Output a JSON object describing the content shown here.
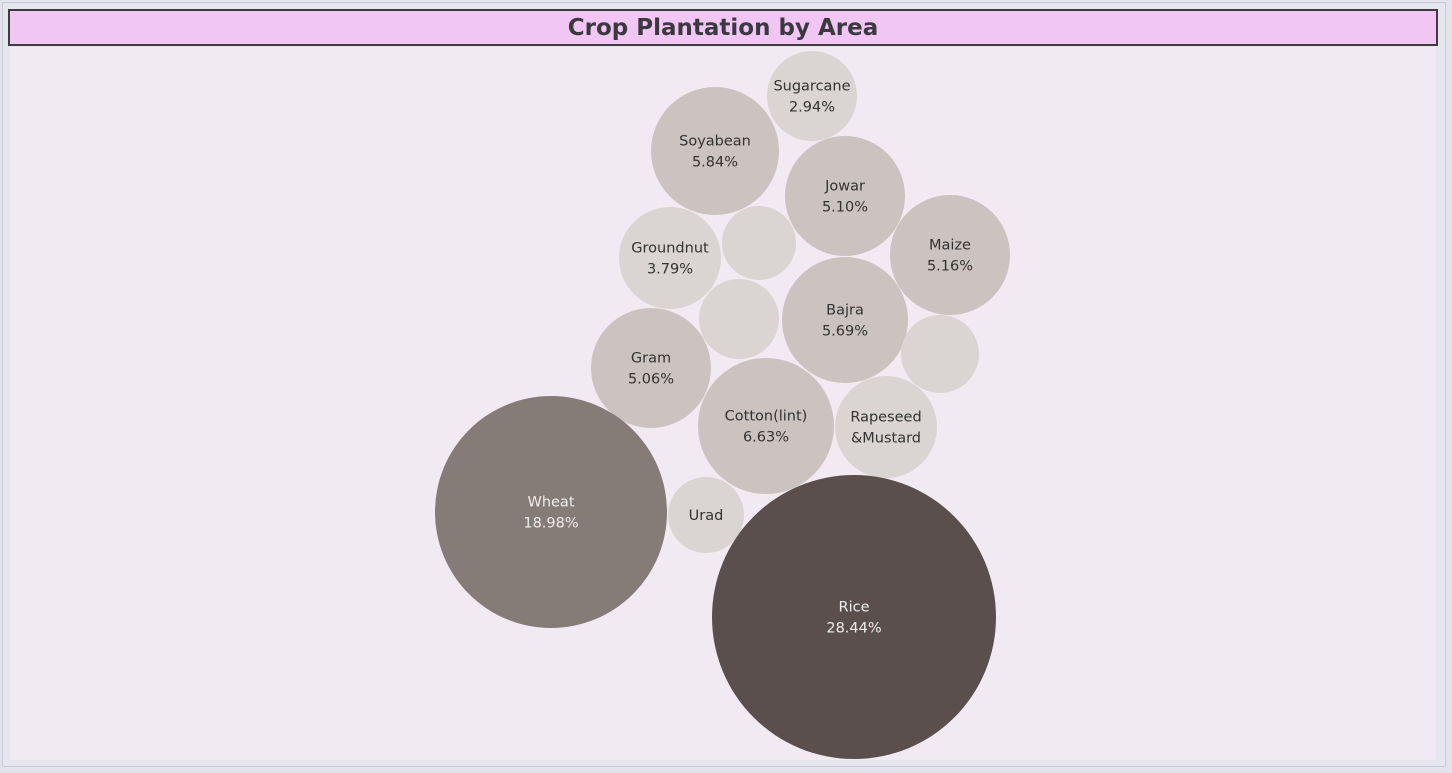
{
  "title": "Crop Plantation by Area",
  "colors": {
    "title_bg": "#f1c6f5",
    "plot_bg": "#f1eaf2",
    "dark_text": "#333333",
    "light_text": "#eeeeee"
  },
  "chart_data": {
    "type": "bubble",
    "title": "Crop Plantation by Area",
    "measure": "percent of total area",
    "bubbles": [
      {
        "category": "Sugarcane",
        "label": "2.94%",
        "value": 2.94,
        "color": "#dad4d2"
      },
      {
        "category": "Soyabean",
        "label": "5.84%",
        "value": 5.84,
        "color": "#cbc3c0"
      },
      {
        "category": "Jowar",
        "label": "5.10%",
        "value": 5.1,
        "color": "#cbc3c0"
      },
      {
        "category": "Maize",
        "label": "5.16%",
        "value": 5.16,
        "color": "#cbc3c0"
      },
      {
        "category": "Groundnut",
        "label": "3.79%",
        "value": 3.79,
        "color": "#dad4d2"
      },
      {
        "category": "",
        "label": "",
        "value": 3.0,
        "color": "#dad4d2"
      },
      {
        "category": "",
        "label": "",
        "value": 3.4,
        "color": "#dad4d2"
      },
      {
        "category": "Bajra",
        "label": "5.69%",
        "value": 5.69,
        "color": "#cbc3c0"
      },
      {
        "category": "",
        "label": "",
        "value": 3.2,
        "color": "#dad4d2"
      },
      {
        "category": "Gram",
        "label": "5.06%",
        "value": 5.06,
        "color": "#cbc3c0"
      },
      {
        "category": "Cotton(lint)",
        "label": "6.63%",
        "value": 6.63,
        "color": "#cbc3c0"
      },
      {
        "category": "Rapeseed &Mustard",
        "label": "",
        "value": 4.4,
        "color": "#dad4d2"
      },
      {
        "category": "Wheat",
        "label": "18.98%",
        "value": 18.98,
        "color": "#857b77"
      },
      {
        "category": "Urad",
        "label": "",
        "value": 2.9,
        "color": "#dad4d2"
      },
      {
        "category": "Rice",
        "label": "28.44%",
        "value": 28.44,
        "color": "#5a4f4c"
      }
    ]
  }
}
